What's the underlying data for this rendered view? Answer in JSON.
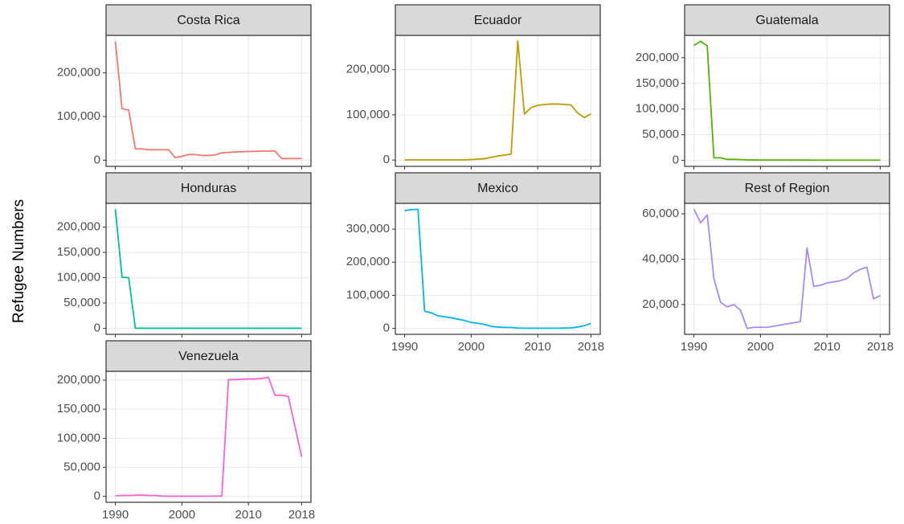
{
  "ylabel": "Refugee Numbers",
  "chart_data": [
    {
      "type": "line",
      "title": "Costa Rica",
      "color": "#F8766D",
      "xtick_labels": false,
      "grid": true,
      "x": [
        1990,
        1991,
        1992,
        1993,
        1994,
        1995,
        1996,
        1997,
        1998,
        1999,
        2000,
        2001,
        2002,
        2003,
        2004,
        2005,
        2006,
        2007,
        2008,
        2009,
        2010,
        2011,
        2012,
        2013,
        2014,
        2015,
        2016,
        2017,
        2018
      ],
      "values": [
        272000,
        118000,
        115000,
        26000,
        26000,
        24000,
        24000,
        24000,
        24000,
        6000,
        9000,
        13000,
        13000,
        11000,
        11000,
        12000,
        17000,
        18000,
        19000,
        19500,
        20000,
        20500,
        21000,
        21000,
        21000,
        4000,
        4000,
        4000,
        4000
      ],
      "xlim": [
        1988.6,
        2019.4
      ],
      "xticks": [
        1990,
        2000,
        2010,
        2018
      ],
      "ylim": [
        -14000,
        286000
      ],
      "yticks": [
        0,
        {
          "value": 100000,
          "label": "100,000"
        },
        {
          "value": 200000,
          "label": "200,000"
        }
      ]
    },
    {
      "type": "line",
      "title": "Ecuador",
      "color": "#C49A00",
      "xtick_labels": false,
      "grid": true,
      "x": [
        1990,
        1991,
        1992,
        1993,
        1994,
        1995,
        1996,
        1997,
        1998,
        1999,
        2000,
        2001,
        2002,
        2003,
        2004,
        2005,
        2006,
        2007,
        2008,
        2009,
        2010,
        2011,
        2012,
        2013,
        2014,
        2015,
        2016,
        2017,
        2018
      ],
      "values": [
        200,
        200,
        200,
        200,
        200,
        200,
        200,
        200,
        200,
        300,
        1000,
        2000,
        3000,
        6000,
        9000,
        11000,
        13000,
        264000,
        102000,
        116000,
        121000,
        123000,
        124000,
        124000,
        123000,
        122000,
        104000,
        94000,
        102000
      ],
      "xlim": [
        1988.6,
        2019.4
      ],
      "xticks": [
        1990,
        2000,
        2010,
        2018
      ],
      "ylim": [
        -14000,
        276000
      ],
      "yticks": [
        0,
        {
          "value": 100000,
          "label": "100,000"
        },
        {
          "value": 200000,
          "label": "200,000"
        }
      ]
    },
    {
      "type": "line",
      "title": "Guatemala",
      "color": "#53B400",
      "xtick_labels": false,
      "grid": true,
      "x": [
        1990,
        1991,
        1992,
        1993,
        1994,
        1995,
        1996,
        1997,
        1998,
        1999,
        2000,
        2001,
        2002,
        2003,
        2004,
        2005,
        2006,
        2007,
        2008,
        2009,
        2010,
        2011,
        2012,
        2013,
        2014,
        2015,
        2016,
        2017,
        2018
      ],
      "values": [
        224000,
        232000,
        223000,
        5000,
        5000,
        2000,
        2000,
        1500,
        1000,
        800,
        700,
        700,
        700,
        700,
        700,
        600,
        600,
        600,
        500,
        500,
        500,
        500,
        500,
        500,
        500,
        500,
        500,
        500,
        500
      ],
      "xlim": [
        1988.6,
        2019.4
      ],
      "xticks": [
        1990,
        2000,
        2010,
        2018
      ],
      "ylim": [
        -11600,
        243600
      ],
      "yticks": [
        0,
        {
          "value": 50000,
          "label": "50,000"
        },
        {
          "value": 100000,
          "label": "100,000"
        },
        {
          "value": 150000,
          "label": "150,000"
        },
        {
          "value": 200000,
          "label": "200,000"
        }
      ]
    },
    {
      "type": "line",
      "title": "Honduras",
      "color": "#00C094",
      "xtick_labels": false,
      "grid": true,
      "x": [
        1990,
        1991,
        1992,
        1993,
        1994,
        1995,
        1996,
        1997,
        1998,
        1999,
        2000,
        2001,
        2002,
        2003,
        2004,
        2005,
        2006,
        2007,
        2008,
        2009,
        2010,
        2011,
        2012,
        2013,
        2014,
        2015,
        2016,
        2017,
        2018
      ],
      "values": [
        235000,
        101000,
        100000,
        200,
        200,
        200,
        200,
        200,
        200,
        200,
        200,
        200,
        200,
        200,
        200,
        200,
        200,
        200,
        200,
        200,
        200,
        200,
        200,
        200,
        200,
        200,
        200,
        200,
        200
      ],
      "xlim": [
        1988.6,
        2019.4
      ],
      "xticks": [
        1990,
        2000,
        2010,
        2018
      ],
      "ylim": [
        -11750,
        246750
      ],
      "yticks": [
        0,
        {
          "value": 50000,
          "label": "50,000"
        },
        {
          "value": 100000,
          "label": "100,000"
        },
        {
          "value": 150000,
          "label": "150,000"
        },
        {
          "value": 200000,
          "label": "200,000"
        }
      ]
    },
    {
      "type": "line",
      "title": "Mexico",
      "color": "#00B6EB",
      "xtick_labels": true,
      "grid": true,
      "x": [
        1990,
        1991,
        1992,
        1993,
        1994,
        1995,
        1996,
        1997,
        1998,
        1999,
        2000,
        2001,
        2002,
        2003,
        2004,
        2005,
        2006,
        2007,
        2008,
        2009,
        2010,
        2011,
        2012,
        2013,
        2014,
        2015,
        2016,
        2017,
        2018
      ],
      "values": [
        356000,
        359000,
        360000,
        52000,
        47000,
        38000,
        35000,
        32000,
        28000,
        24000,
        18000,
        15000,
        12000,
        6000,
        4000,
        3000,
        3000,
        1000,
        500,
        500,
        500,
        500,
        500,
        600,
        1000,
        1500,
        4000,
        8000,
        15000
      ],
      "xlim": [
        1988.6,
        2019.4
      ],
      "xticks": [
        1990,
        2000,
        2010,
        2018
      ],
      "ylim": [
        -18000,
        378000
      ],
      "yticks": [
        0,
        {
          "value": 100000,
          "label": "100,000"
        },
        {
          "value": 200000,
          "label": "200,000"
        },
        {
          "value": 300000,
          "label": "300,000"
        }
      ]
    },
    {
      "type": "line",
      "title": "Rest of Region",
      "color": "#A58AFF",
      "xtick_labels": true,
      "grid": true,
      "x": [
        1990,
        1991,
        1992,
        1993,
        1994,
        1995,
        1996,
        1997,
        1998,
        1999,
        2000,
        2001,
        2002,
        2003,
        2004,
        2005,
        2006,
        2007,
        2008,
        2009,
        2010,
        2011,
        2012,
        2013,
        2014,
        2015,
        2016,
        2017,
        2018
      ],
      "values": [
        62000,
        56000,
        59500,
        31500,
        21000,
        19000,
        20000,
        17500,
        9500,
        10000,
        10000,
        10000,
        10500,
        11000,
        11500,
        12000,
        12500,
        45000,
        28000,
        28500,
        29500,
        30000,
        30500,
        31500,
        34000,
        35500,
        36500,
        22500,
        24000
      ],
      "xlim": [
        1988.6,
        2019.4
      ],
      "xticks": [
        1990,
        2000,
        2010,
        2018
      ],
      "ylim": [
        6900,
        64600
      ],
      "yticks": [
        {
          "value": 20000,
          "label": "20,000"
        },
        {
          "value": 40000,
          "label": "40,000"
        },
        {
          "value": 60000,
          "label": "60,000"
        }
      ]
    },
    {
      "type": "line",
      "title": "Venezuela",
      "color": "#FB61D7",
      "xtick_labels": true,
      "grid": true,
      "x": [
        1990,
        1991,
        1992,
        1993,
        1994,
        1995,
        1996,
        1997,
        1998,
        1999,
        2000,
        2001,
        2002,
        2003,
        2004,
        2005,
        2006,
        2007,
        2008,
        2009,
        2010,
        2011,
        2012,
        2013,
        2014,
        2015,
        2016,
        2017,
        2018
      ],
      "values": [
        1000,
        1500,
        1500,
        2000,
        2000,
        1500,
        1500,
        500,
        300,
        300,
        300,
        300,
        300,
        300,
        300,
        400,
        500,
        201000,
        201000,
        201500,
        202000,
        202000,
        203000,
        205000,
        174000,
        174000,
        172000,
        120000,
        68000
      ],
      "xlim": [
        1988.6,
        2019.4
      ],
      "xticks": [
        1990,
        2000,
        2010,
        2018
      ],
      "ylim": [
        -10250,
        215250
      ],
      "yticks": [
        0,
        {
          "value": 50000,
          "label": "50,000"
        },
        {
          "value": 100000,
          "label": "100,000"
        },
        {
          "value": 150000,
          "label": "150,000"
        },
        {
          "value": 200000,
          "label": "200,000"
        }
      ]
    }
  ]
}
